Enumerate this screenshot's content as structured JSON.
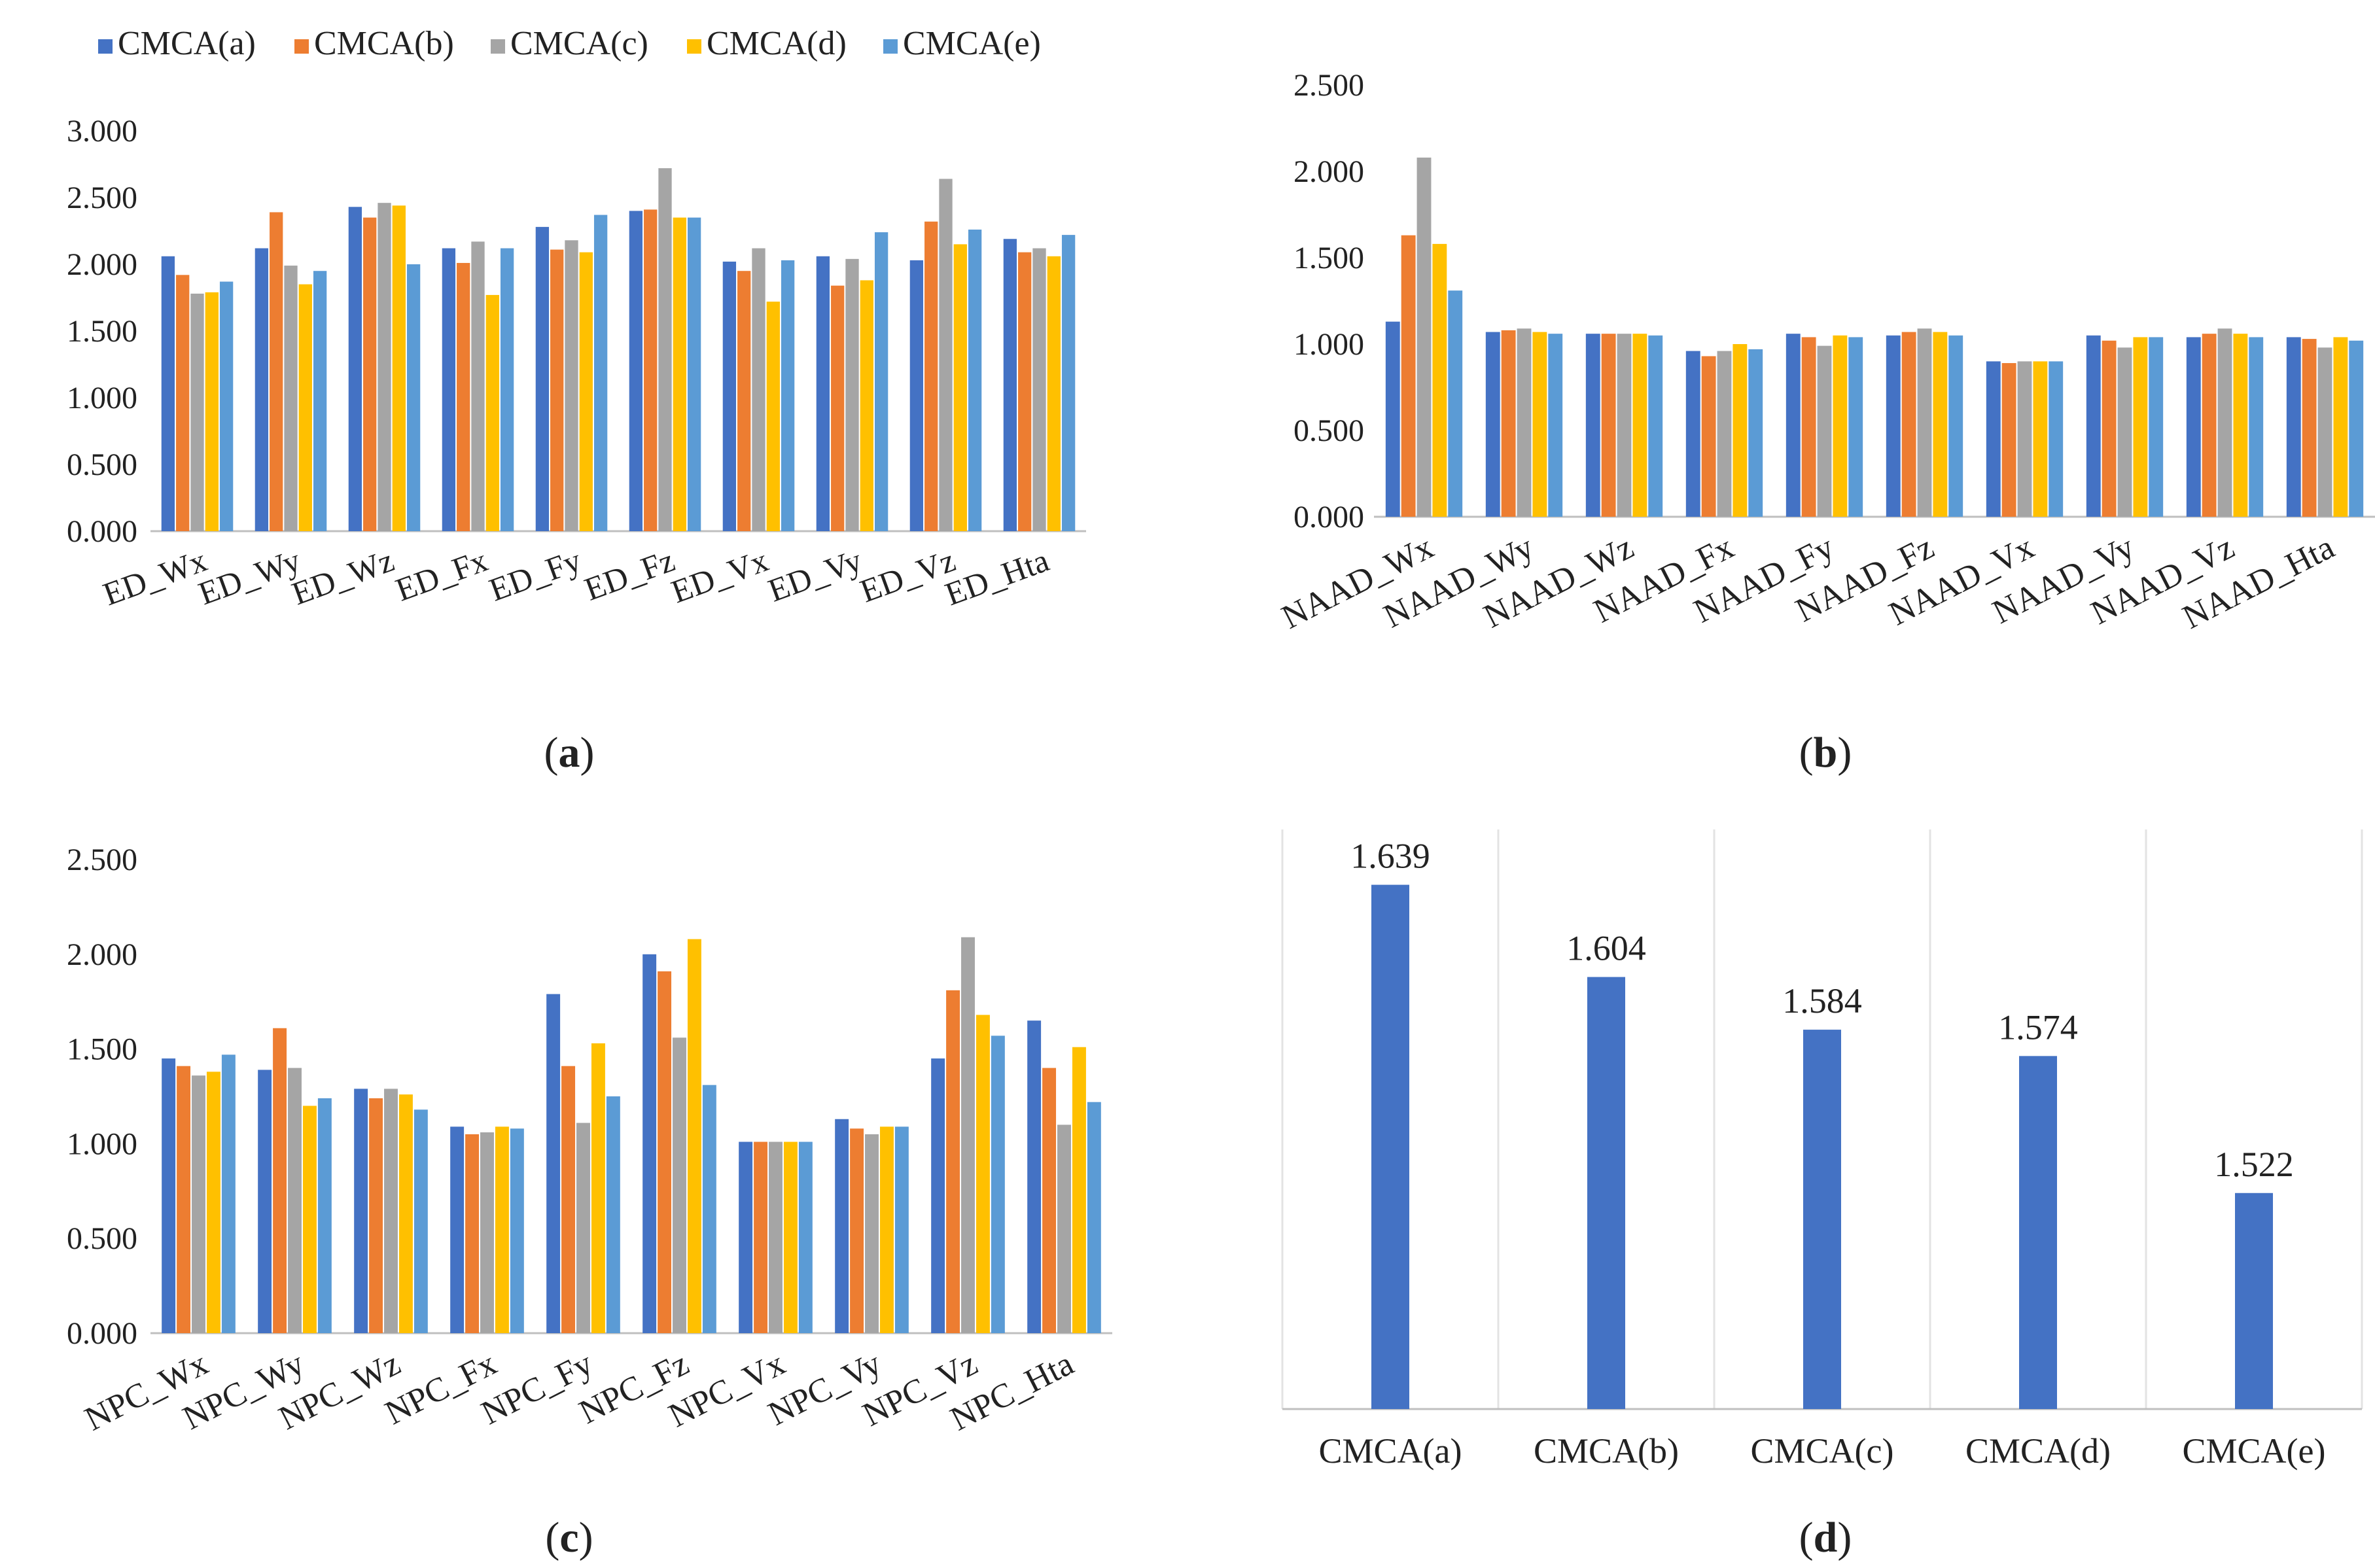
{
  "colors": {
    "CMCA(a)": "#4472c4",
    "CMCA(b)": "#ed7d31",
    "CMCA(c)": "#a5a5a5",
    "CMCA(d)": "#ffc000",
    "CMCA(e)": "#5b9bd5",
    "axis": "#bfbfbf",
    "text": "#222222"
  },
  "legend": {
    "items": [
      "CMCA(a)",
      "CMCA(b)",
      "CMCA(c)",
      "CMCA(d)",
      "CMCA(e)"
    ]
  },
  "chart_data": [
    {
      "type": "bar",
      "panel_label": "a",
      "categories": [
        "ED_Wx",
        "ED_Wy",
        "ED_Wz",
        "ED_Fx",
        "ED_Fy",
        "ED_Fz",
        "ED_Vx",
        "ED_Vy",
        "ED_Vz",
        "ED_Hta"
      ],
      "series": [
        {
          "name": "CMCA(a)",
          "values": [
            2.06,
            2.12,
            2.43,
            2.12,
            2.28,
            2.4,
            2.02,
            2.06,
            2.03,
            2.19
          ]
        },
        {
          "name": "CMCA(b)",
          "values": [
            1.92,
            2.39,
            2.35,
            2.01,
            2.11,
            2.41,
            1.95,
            1.84,
            2.32,
            2.09
          ]
        },
        {
          "name": "CMCA(c)",
          "values": [
            1.78,
            1.99,
            2.46,
            2.17,
            2.18,
            2.72,
            2.12,
            2.04,
            2.64,
            2.12
          ]
        },
        {
          "name": "CMCA(d)",
          "values": [
            1.79,
            1.85,
            2.44,
            1.77,
            2.09,
            2.35,
            1.72,
            1.88,
            2.15,
            2.06
          ]
        },
        {
          "name": "CMCA(e)",
          "values": [
            1.87,
            1.95,
            2.0,
            2.12,
            2.37,
            2.35,
            2.03,
            2.24,
            2.26,
            2.22
          ]
        }
      ],
      "yticks": [
        "0.000",
        "0.500",
        "1.000",
        "1.500",
        "2.000",
        "2.500",
        "3.000"
      ],
      "ylim": [
        0,
        3
      ]
    },
    {
      "type": "bar",
      "panel_label": "b",
      "categories": [
        "NAAD_Wx",
        "NAAD_Wy",
        "NAAD_Wz",
        "NAAD_Fx",
        "NAAD_Fy",
        "NAAD_Fz",
        "NAAD_Vx",
        "NAAD_Vy",
        "NAAD_Vz",
        "NAAD_Hta"
      ],
      "series": [
        {
          "name": "CMCA(a)",
          "values": [
            1.13,
            1.07,
            1.06,
            0.96,
            1.06,
            1.05,
            0.9,
            1.05,
            1.04,
            1.04
          ]
        },
        {
          "name": "CMCA(b)",
          "values": [
            1.63,
            1.08,
            1.06,
            0.93,
            1.04,
            1.07,
            0.89,
            1.02,
            1.06,
            1.03
          ]
        },
        {
          "name": "CMCA(c)",
          "values": [
            2.08,
            1.09,
            1.06,
            0.96,
            0.99,
            1.09,
            0.9,
            0.98,
            1.09,
            0.98
          ]
        },
        {
          "name": "CMCA(d)",
          "values": [
            1.58,
            1.07,
            1.06,
            1.0,
            1.05,
            1.07,
            0.9,
            1.04,
            1.06,
            1.04
          ]
        },
        {
          "name": "CMCA(e)",
          "values": [
            1.31,
            1.06,
            1.05,
            0.97,
            1.04,
            1.05,
            0.9,
            1.04,
            1.04,
            1.02
          ]
        }
      ],
      "yticks": [
        "0.000",
        "0.500",
        "1.000",
        "1.500",
        "2.000",
        "2.500"
      ],
      "ylim": [
        0,
        2.5
      ]
    },
    {
      "type": "bar",
      "panel_label": "c",
      "categories": [
        "NPC_Wx",
        "NPC_Wy",
        "NPC_Wz",
        "NPC_Fx",
        "NPC_Fy",
        "NPC_Fz",
        "NPC_Vx",
        "NPC_Vy",
        "NPC_Vz",
        "NPC_Hta"
      ],
      "series": [
        {
          "name": "CMCA(a)",
          "values": [
            1.45,
            1.39,
            1.29,
            1.09,
            1.79,
            2.0,
            1.01,
            1.13,
            1.45,
            1.65
          ]
        },
        {
          "name": "CMCA(b)",
          "values": [
            1.41,
            1.61,
            1.24,
            1.05,
            1.41,
            1.91,
            1.01,
            1.08,
            1.81,
            1.4
          ]
        },
        {
          "name": "CMCA(c)",
          "values": [
            1.36,
            1.4,
            1.29,
            1.06,
            1.11,
            1.56,
            1.01,
            1.05,
            2.09,
            1.1
          ]
        },
        {
          "name": "CMCA(d)",
          "values": [
            1.38,
            1.2,
            1.26,
            1.09,
            1.53,
            2.08,
            1.01,
            1.09,
            1.68,
            1.51
          ]
        },
        {
          "name": "CMCA(e)",
          "values": [
            1.47,
            1.24,
            1.18,
            1.08,
            1.25,
            1.31,
            1.01,
            1.09,
            1.57,
            1.22
          ]
        }
      ],
      "yticks": [
        "0.000",
        "0.500",
        "1.000",
        "1.500",
        "2.000",
        "2.500"
      ],
      "ylim": [
        0,
        2.5
      ]
    },
    {
      "type": "bar",
      "panel_label": "d",
      "categories": [
        "CMCA(a)",
        "CMCA(b)",
        "CMCA(c)",
        "CMCA(d)",
        "CMCA(e)"
      ],
      "values": [
        1.639,
        1.604,
        1.584,
        1.574,
        1.522
      ],
      "value_labels": [
        "1.639",
        "1.604",
        "1.584",
        "1.574",
        "1.522"
      ],
      "ylim": [
        1.44,
        1.66
      ]
    }
  ]
}
